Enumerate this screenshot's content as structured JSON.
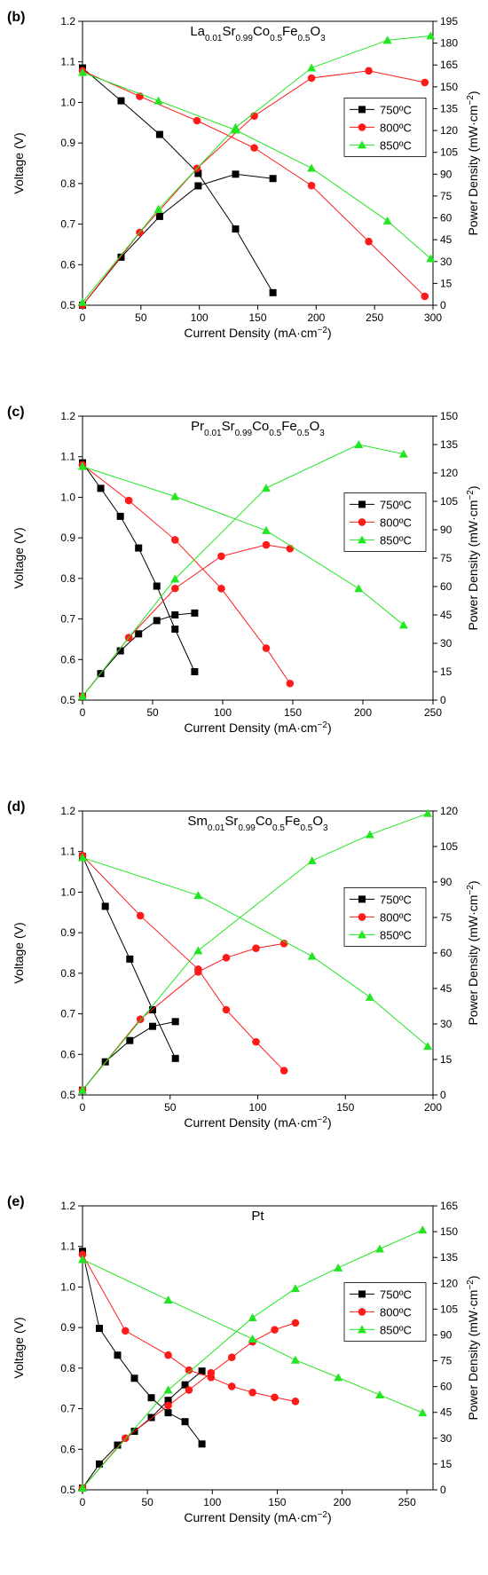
{
  "figure": {
    "background": "#ffffff"
  },
  "series_styles": [
    {
      "color": "#000000",
      "marker": "square"
    },
    {
      "color": "#ff1a1a",
      "marker": "circle"
    },
    {
      "color": "#22e622",
      "marker": "triangle"
    }
  ],
  "chart_data": [
    {
      "type": "line",
      "panel_label": "(b)",
      "title": "La0.01Sr0.99Co0.5Fe0.5O3",
      "title_parts": [
        {
          "t": "La",
          "sub": false
        },
        {
          "t": "0.01",
          "sub": true
        },
        {
          "t": "Sr",
          "sub": false
        },
        {
          "t": "0.99",
          "sub": true
        },
        {
          "t": "Co",
          "sub": false
        },
        {
          "t": "0.5",
          "sub": true
        },
        {
          "t": "Fe",
          "sub": false
        },
        {
          "t": "0.5",
          "sub": true
        },
        {
          "t": "O",
          "sub": false
        },
        {
          "t": "3",
          "sub": true
        }
      ],
      "xlabel": "Current Density (mA·cm−2)",
      "xlabel_main": "Current Density (mA·cm",
      "xlabel_sup": "−2",
      "xlabel_end": ")",
      "ylabel": "Voltage (V)",
      "y2label": "Power Density (mW·cm−2)",
      "y2label_main": "Power Density (mW·cm",
      "y2label_sup": "−2",
      "y2label_end": ")",
      "xlim": [
        0,
        300
      ],
      "ylim": [
        0.5,
        1.2
      ],
      "y2lim": [
        0,
        195
      ],
      "xticks": [
        0,
        50,
        100,
        150,
        200,
        250,
        300
      ],
      "yticks": [
        0.5,
        0.6,
        0.7,
        0.8,
        0.9,
        1.0,
        1.1,
        1.2
      ],
      "y2ticks": [
        0,
        15,
        30,
        45,
        60,
        75,
        90,
        105,
        120,
        135,
        150,
        165,
        180,
        195
      ],
      "legend_placement": "right",
      "series": [
        {
          "name": "750ºC",
          "voltage": {
            "x": [
              0,
              33,
              66,
              99,
              131,
              163
            ],
            "y": [
              1.085,
              1.004,
              0.921,
              0.825,
              0.688,
              0.531
            ]
          },
          "power": {
            "x": [
              0,
              33,
              66,
              99,
              131,
              163
            ],
            "y": [
              0,
              33,
              61,
              82,
              90,
              87
            ]
          }
        },
        {
          "name": "800ºC",
          "voltage": {
            "x": [
              0,
              49,
              98,
              147,
              196,
              245,
              293
            ],
            "y": [
              1.078,
              1.015,
              0.955,
              0.888,
              0.795,
              0.657,
              0.522
            ]
          },
          "power": {
            "x": [
              0,
              49,
              98,
              147,
              196,
              245,
              293
            ],
            "y": [
              0,
              50,
              94,
              130,
              156,
              161,
              153
            ]
          }
        },
        {
          "name": "850ºC",
          "voltage": {
            "x": [
              0,
              65,
              131,
              196,
              261,
              298
            ],
            "y": [
              1.074,
              1.004,
              0.932,
              0.838,
              0.708,
              0.615
            ]
          },
          "power": {
            "x": [
              0,
              65,
              131,
              196,
              261,
              298
            ],
            "y": [
              2,
              66,
              122,
              163,
              182,
              185
            ]
          }
        }
      ]
    },
    {
      "type": "line",
      "panel_label": "(c)",
      "title": "Pr0.01Sr0.99Co0.5Fe0.5O3",
      "title_parts": [
        {
          "t": "Pr",
          "sub": false
        },
        {
          "t": "0.01",
          "sub": true
        },
        {
          "t": "Sr",
          "sub": false
        },
        {
          "t": "0.99",
          "sub": true
        },
        {
          "t": "Co",
          "sub": false
        },
        {
          "t": "0.5",
          "sub": true
        },
        {
          "t": "Fe",
          "sub": false
        },
        {
          "t": "0.5",
          "sub": true
        },
        {
          "t": "O",
          "sub": false
        },
        {
          "t": "3",
          "sub": true
        }
      ],
      "xlabel": "Current Density (mA·cm−2)",
      "xlabel_main": "Current Density (mA·cm",
      "xlabel_sup": "−2",
      "xlabel_end": ")",
      "ylabel": "Voltage (V)",
      "y2label": "Power Density (mW·cm−2)",
      "y2label_main": "Power Density (mW·cm",
      "y2label_sup": "−2",
      "y2label_end": ")",
      "xlim": [
        0,
        250
      ],
      "ylim": [
        0.5,
        1.2
      ],
      "y2lim": [
        0,
        150
      ],
      "xticks": [
        0,
        50,
        100,
        150,
        200,
        250
      ],
      "yticks": [
        0.5,
        0.6,
        0.7,
        0.8,
        0.9,
        1.0,
        1.1,
        1.2
      ],
      "y2ticks": [
        0,
        15,
        30,
        45,
        60,
        75,
        90,
        105,
        120,
        135,
        150
      ],
      "legend_placement": "right",
      "series": [
        {
          "name": "750ºC",
          "voltage": {
            "x": [
              0,
              13,
              27,
              40,
              53,
              66,
              80
            ],
            "y": [
              1.085,
              1.022,
              0.953,
              0.875,
              0.781,
              0.675,
              0.57
            ]
          },
          "power": {
            "x": [
              0,
              13,
              27,
              40,
              53,
              66,
              80
            ],
            "y": [
              2,
              14,
              26,
              35,
              42,
              45,
              46
            ]
          }
        },
        {
          "name": "800ºC",
          "voltage": {
            "x": [
              0,
              33,
              66,
              99,
              131,
              148
            ],
            "y": [
              1.08,
              0.992,
              0.895,
              0.775,
              0.628,
              0.541
            ]
          },
          "power": {
            "x": [
              0,
              33,
              66,
              99,
              131,
              148
            ],
            "y": [
              2,
              33,
              59,
              76,
              82,
              80
            ]
          }
        },
        {
          "name": "850ºC",
          "voltage": {
            "x": [
              0,
              66,
              131,
              197,
              229
            ],
            "y": [
              1.076,
              1.002,
              0.918,
              0.775,
              0.685
            ]
          },
          "power": {
            "x": [
              0,
              66,
              131,
              197,
              229
            ],
            "y": [
              2,
              64,
              112,
              135,
              130
            ]
          }
        }
      ]
    },
    {
      "type": "line",
      "panel_label": "(d)",
      "title": "Sm0.01Sr0.99Co0.5Fe0.5O3",
      "title_parts": [
        {
          "t": "Sm",
          "sub": false
        },
        {
          "t": "0.01",
          "sub": true
        },
        {
          "t": "Sr",
          "sub": false
        },
        {
          "t": "0.99",
          "sub": true
        },
        {
          "t": "Co",
          "sub": false
        },
        {
          "t": "0.5",
          "sub": true
        },
        {
          "t": "Fe",
          "sub": false
        },
        {
          "t": "0.5",
          "sub": true
        },
        {
          "t": "O",
          "sub": false
        },
        {
          "t": "3",
          "sub": true
        }
      ],
      "xlabel": "Current Density (mA·cm−2)",
      "xlabel_main": "Current Density (mA·cm",
      "xlabel_sup": "−2",
      "xlabel_end": ")",
      "ylabel": "Voltage (V)",
      "y2label": "Power Density (mW·cm−2)",
      "y2label_main": "Power Density (mW·cm",
      "y2label_sup": "−2",
      "y2label_end": ")",
      "xlim": [
        0,
        200
      ],
      "ylim": [
        0.5,
        1.2
      ],
      "y2lim": [
        0,
        120
      ],
      "xticks": [
        0,
        50,
        100,
        150,
        200
      ],
      "yticks": [
        0.5,
        0.6,
        0.7,
        0.8,
        0.9,
        1.0,
        1.1,
        1.2
      ],
      "y2ticks": [
        0,
        15,
        30,
        45,
        60,
        75,
        90,
        105,
        120
      ],
      "legend_placement": "right",
      "series": [
        {
          "name": "750ºC",
          "voltage": {
            "x": [
              0,
              13,
              27,
              40,
              53
            ],
            "y": [
              1.088,
              0.965,
              0.835,
              0.71,
              0.59
            ]
          },
          "power": {
            "x": [
              0,
              13,
              27,
              40,
              53
            ],
            "y": [
              2,
              14,
              23,
              29,
              31
            ]
          }
        },
        {
          "name": "800ºC",
          "voltage": {
            "x": [
              0,
              33,
              66,
              82,
              99,
              115
            ],
            "y": [
              1.09,
              0.942,
              0.81,
              0.71,
              0.631,
              0.56
            ]
          },
          "power": {
            "x": [
              0,
              33,
              66,
              82,
              99,
              115
            ],
            "y": [
              2,
              32,
              52,
              58,
              62,
              64
            ]
          }
        },
        {
          "name": "850ºC",
          "voltage": {
            "x": [
              0,
              66,
              131,
              164,
              197
            ],
            "y": [
              1.085,
              0.992,
              0.842,
              0.741,
              0.62
            ]
          },
          "power": {
            "x": [
              0,
              66,
              131,
              164,
              197
            ],
            "y": [
              2,
              61,
              99,
              110,
              119
            ]
          }
        }
      ]
    },
    {
      "type": "line",
      "panel_label": "(e)",
      "title": "Pt",
      "title_parts": [
        {
          "t": "Pt",
          "sub": false
        }
      ],
      "xlabel": "Current Density (mA·cm−2)",
      "xlabel_main": "Current Density (mA·cm",
      "xlabel_sup": "−2",
      "xlabel_end": ")",
      "ylabel": "Voltage (V)",
      "y2label": "Power Density (mW·cm−2)",
      "y2label_main": "Power Density (mW·cm",
      "y2label_sup": "−2",
      "y2label_end": ")",
      "xlim": [
        0,
        270
      ],
      "ylim": [
        0.5,
        1.2
      ],
      "y2lim": [
        0,
        165
      ],
      "xticks": [
        0,
        50,
        100,
        150,
        200,
        250
      ],
      "yticks": [
        0.5,
        0.6,
        0.7,
        0.8,
        0.9,
        1.0,
        1.1,
        1.2
      ],
      "y2ticks": [
        0,
        15,
        30,
        45,
        60,
        75,
        90,
        105,
        120,
        135,
        150,
        165
      ],
      "legend_placement": "right",
      "series": [
        {
          "name": "750ºC",
          "voltage": {
            "x": [
              0,
              13,
              27,
              40,
              53,
              66,
              79,
              92
            ],
            "y": [
              1.088,
              0.898,
              0.832,
              0.775,
              0.727,
              0.69,
              0.668,
              0.613
            ]
          },
          "power": {
            "x": [
              0,
              13,
              27,
              40,
              53,
              66,
              79,
              92
            ],
            "y": [
              1,
              15,
              26,
              34,
              42,
              52,
              61,
              69
            ]
          }
        },
        {
          "name": "800ºC",
          "voltage": {
            "x": [
              0,
              33,
              66,
              82,
              99,
              115,
              131,
              148,
              164
            ],
            "y": [
              1.08,
              0.892,
              0.832,
              0.795,
              0.777,
              0.755,
              0.74,
              0.728,
              0.718
            ]
          },
          "power": {
            "x": [
              0,
              33,
              66,
              82,
              99,
              115,
              131,
              148,
              164
            ],
            "y": [
              1,
              30,
              49,
              58,
              68,
              77,
              86,
              93,
              97
            ]
          }
        },
        {
          "name": "850ºC",
          "voltage": {
            "x": [
              0,
              66,
              131,
              164,
              197,
              229,
              262
            ],
            "y": [
              1.068,
              0.968,
              0.872,
              0.82,
              0.777,
              0.734,
              0.69
            ]
          },
          "power": {
            "x": [
              0,
              66,
              131,
              164,
              197,
              229,
              262
            ],
            "y": [
              1,
              58,
              100,
              117,
              129,
              140,
              151
            ]
          }
        }
      ]
    }
  ]
}
